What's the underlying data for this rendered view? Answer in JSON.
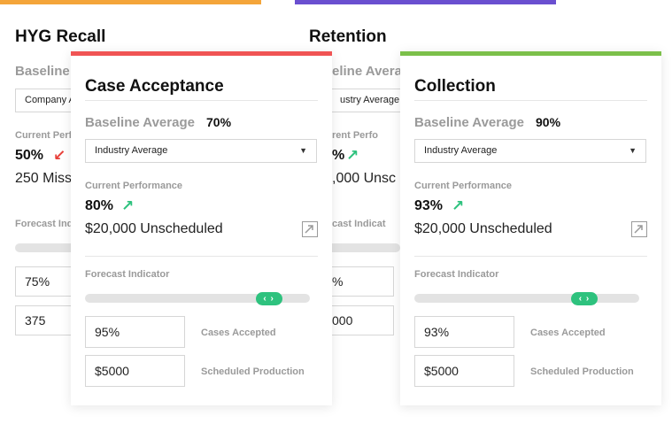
{
  "colors": {
    "hyg": "#f4a53a",
    "retention": "#6a4fd0",
    "case": "#f05454",
    "collection": "#7cc04a",
    "up_arrow": "#2ec27e",
    "down_arrow": "#e8403a",
    "slider": "#2ec27e"
  },
  "hyg": {
    "title": "HYG Recall",
    "baseline_label": "Baseline",
    "select_value": "Company A",
    "current_label": "Current Perf",
    "perf_value": "50%",
    "perf_arrow": "↙",
    "summary": "250 Miss",
    "forecast_label": "Forecast Indic",
    "input1": "75%",
    "input2": "375"
  },
  "retention": {
    "title": "Retention",
    "baseline_label": "eline Avera",
    "select_value": "ustry Average",
    "current_label": "rent Perfo",
    "perf_value": "%",
    "perf_arrow": "↗",
    "summary": ",000 Unsc",
    "forecast_label": "cast Indicat",
    "input1": "%",
    "input2": "000"
  },
  "case": {
    "title": "Case Acceptance",
    "baseline_label": "Baseline Average",
    "baseline_value": "70%",
    "select_value": "Industry Average",
    "select_chevron": "▼",
    "current_label": "Current Performance",
    "perf_value": "80%",
    "perf_arrow": "↗",
    "summary": "$20,000 Unscheduled",
    "forecast_label": "Forecast Indicator",
    "slider_level_pct": 86,
    "slider_glyph": "‹ ›",
    "input1": "95%",
    "input1_label": "Cases Accepted",
    "input2": "$5000",
    "input2_label": "Scheduled Production"
  },
  "collection": {
    "title": "Collection",
    "baseline_label": "Baseline Average",
    "baseline_value": "90%",
    "select_value": "Industry Average",
    "select_chevron": "▼",
    "current_label": "Current Performance",
    "perf_value": "93%",
    "perf_arrow": "↗",
    "summary": "$20,000 Unscheduled",
    "forecast_label": "Forecast Indicator",
    "slider_level_pct": 79,
    "slider_glyph": "‹ ›",
    "input1": "93%",
    "input1_label": "Cases Accepted",
    "input2": "$5000",
    "input2_label": "Scheduled Production"
  }
}
